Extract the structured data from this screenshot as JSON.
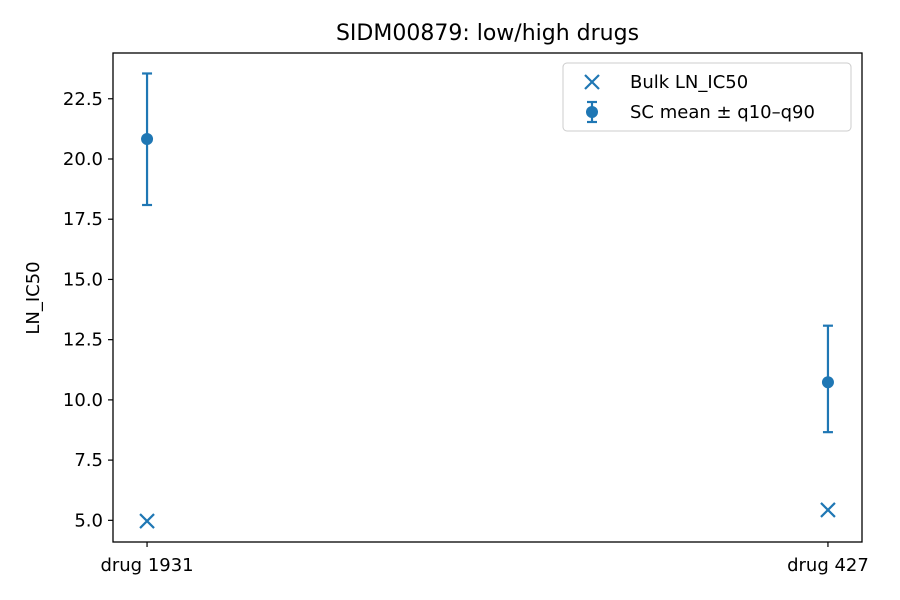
{
  "chart_data": {
    "type": "scatter",
    "title": "SIDM00879: low/high drugs",
    "xlabel": "",
    "ylabel": "LN_IC50",
    "categories": [
      "drug 1931",
      "drug 427"
    ],
    "ylim": [
      4.1,
      24.4
    ],
    "yticks": [
      "5.0",
      "7.5",
      "10.0",
      "12.5",
      "15.0",
      "17.5",
      "20.0",
      "22.5"
    ],
    "series": [
      {
        "name": "Bulk LN_IC50",
        "marker": "x",
        "values": [
          4.97,
          5.43
        ]
      },
      {
        "name": "SC mean ± q10–q90",
        "marker": "circle-errorbar",
        "values": [
          20.83,
          10.73
        ],
        "lower": [
          18.09,
          8.66
        ],
        "upper": [
          23.55,
          13.08
        ]
      }
    ],
    "legend": "top-right",
    "grid": false,
    "color": "#1f77b4"
  }
}
